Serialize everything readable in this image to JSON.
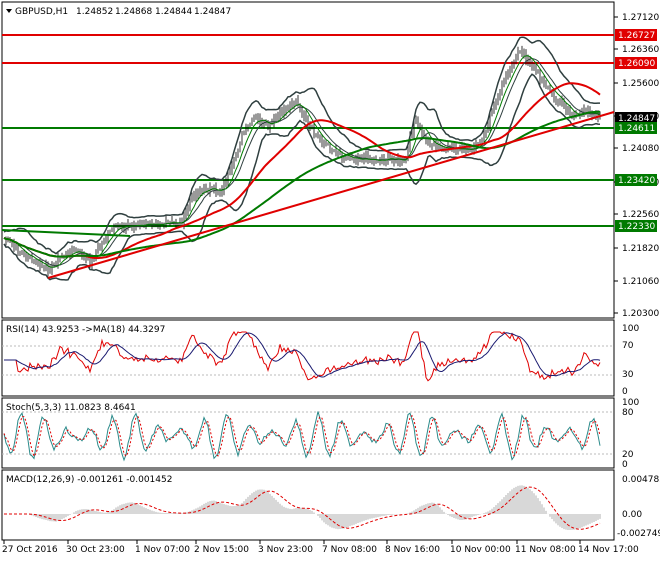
{
  "main_panel": {
    "symbol_label": "GBPUSD,H1",
    "ohlc": [
      "1.24852",
      "1.24868",
      "1.24844",
      "1.24847"
    ],
    "price_scale": [
      "1.27120",
      "1.26360",
      "1.25600",
      "1.24840",
      "1.24080",
      "1.23320",
      "1.22560",
      "1.21820",
      "1.21060",
      "1.20300"
    ],
    "level_tags": [
      {
        "label": "1.26727",
        "color": "#e00000"
      },
      {
        "label": "1.26090",
        "color": "#e00000"
      },
      {
        "label": "1.24847",
        "color": "#000000"
      },
      {
        "label": "1.24611",
        "color": "#007a00"
      },
      {
        "label": "1.23420",
        "color": "#007a00"
      },
      {
        "label": "1.22330",
        "color": "#007a00"
      }
    ]
  },
  "rsi_panel": {
    "title": "RSI(14) 43.9253 ->MA(18) 44.3297",
    "scale": [
      "100",
      "70",
      "30",
      "0"
    ]
  },
  "stoch_panel": {
    "title": "Stoch(5,3,3) 11.0823 8.4641",
    "scale": [
      "100",
      "80",
      "20",
      "0"
    ]
  },
  "macd_panel": {
    "title": "MACD(12,26,9) -0.001261 -0.001452",
    "scale": [
      "0.004783",
      "0.00",
      "-0.002749"
    ]
  },
  "time_axis": [
    "27 Oct 2016",
    "30 Oct 23:00",
    "1 Nov 07:00",
    "2 Nov 15:00",
    "3 Nov 23:00",
    "7 Nov 08:00",
    "8 Nov 16:00",
    "10 Nov 00:00",
    "11 Nov 08:00",
    "14 Nov 17:00"
  ],
  "colors": {
    "resistance": "#e00000",
    "support": "#007a00",
    "bollinger": "#2f3f3f",
    "ma_fast": "#e00000",
    "ma_slow": "#007a00",
    "rsi_line": "#e00000",
    "rsi_ma": "#1a1a70",
    "stoch_main": "#2a8a8a",
    "stoch_signal": "#e00000"
  }
}
